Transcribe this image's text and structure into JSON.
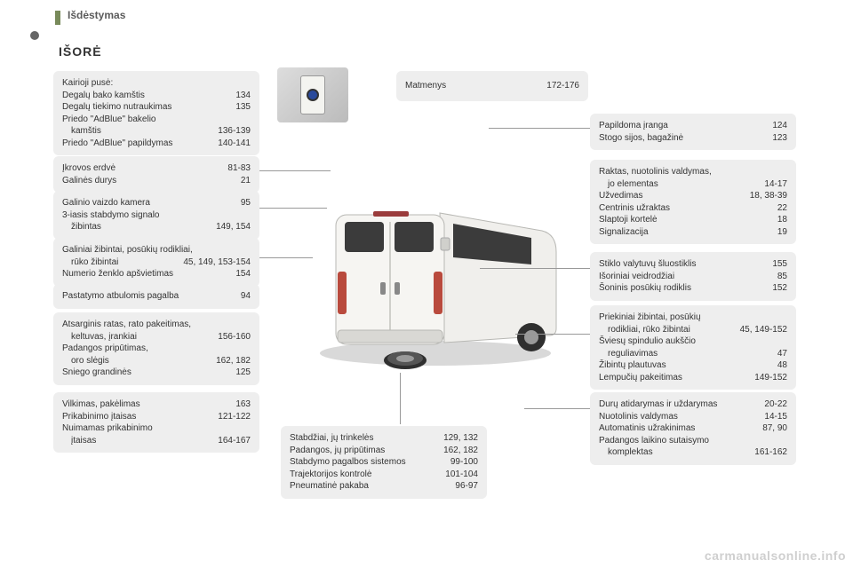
{
  "header": {
    "breadcrumb": "Išdėstymas",
    "section": "IŠORĖ"
  },
  "watermark": "carmanualsonline.info",
  "left": {
    "l1": [
      {
        "label": "Kairioji pusė:",
        "pages": ""
      },
      {
        "label": "Degalų bako kamštis",
        "pages": "134"
      },
      {
        "label": "Degalų tiekimo nutraukimas",
        "pages": "135"
      },
      {
        "label": "Priedo \"AdBlue\" bakelio",
        "pages": ""
      },
      {
        "label": "kamštis",
        "pages": "136-139",
        "indent": true
      },
      {
        "label": "Priedo \"AdBlue\" papildymas",
        "pages": "140-141"
      }
    ],
    "l2": [
      {
        "label": "Įkrovos erdvė",
        "pages": "81-83"
      },
      {
        "label": "Galinės durys",
        "pages": "21"
      }
    ],
    "l3": [
      {
        "label": "Galinio vaizdo kamera",
        "pages": "95"
      },
      {
        "label": "3-iasis stabdymo signalo",
        "pages": ""
      },
      {
        "label": "žibintas",
        "pages": "149, 154",
        "indent": true
      }
    ],
    "l4": [
      {
        "label": "Galiniai žibintai, posūkių rodikliai,",
        "pages": ""
      },
      {
        "label": "rūko žibintai",
        "pages": "45, 149, 153-154",
        "indent": true
      },
      {
        "label": "Numerio ženklo apšvietimas",
        "pages": "154"
      }
    ],
    "l5": [
      {
        "label": "Pastatymo atbulomis pagalba",
        "pages": "94"
      }
    ],
    "l6": [
      {
        "label": "Atsarginis ratas, rato pakeitimas,",
        "pages": ""
      },
      {
        "label": "keltuvas, įrankiai",
        "pages": "156-160",
        "indent": true
      },
      {
        "label": "Padangos pripūtimas,",
        "pages": ""
      },
      {
        "label": "oro slėgis",
        "pages": "162, 182",
        "indent": true
      },
      {
        "label": "Sniego grandinės",
        "pages": "125"
      }
    ],
    "l7": [
      {
        "label": "Vilkimas, pakėlimas",
        "pages": "163"
      },
      {
        "label": "Prikabinimo įtaisas",
        "pages": "121-122"
      },
      {
        "label": "Nuimamas prikabinimo",
        "pages": ""
      },
      {
        "label": "įtaisas",
        "pages": "164-167",
        "indent": true
      }
    ]
  },
  "center": {
    "c1": [
      {
        "label": "Matmenys",
        "pages": "172-176"
      }
    ],
    "c2": [
      {
        "label": "Stabdžiai, jų trinkelės",
        "pages": "129, 132"
      },
      {
        "label": "Padangos, jų pripūtimas",
        "pages": "162, 182"
      },
      {
        "label": "Stabdymo pagalbos sistemos",
        "pages": "99-100"
      },
      {
        "label": "Trajektorijos kontrolė",
        "pages": "101-104"
      },
      {
        "label": "Pneumatinė pakaba",
        "pages": "96-97"
      }
    ]
  },
  "right": {
    "r1": [
      {
        "label": "Papildoma įranga",
        "pages": "124"
      },
      {
        "label": "Stogo sijos, bagažinė",
        "pages": "123"
      }
    ],
    "r2": [
      {
        "label": "Raktas, nuotolinis valdymas,",
        "pages": ""
      },
      {
        "label": "jo elementas",
        "pages": "14-17",
        "indent": true
      },
      {
        "label": "Užvedimas",
        "pages": "18, 38-39"
      },
      {
        "label": "Centrinis užraktas",
        "pages": "22"
      },
      {
        "label": "Slaptoji kortelė",
        "pages": "18"
      },
      {
        "label": "Signalizacija",
        "pages": "19"
      }
    ],
    "r3": [
      {
        "label": "Stiklo valytuvų šluostiklis",
        "pages": "155"
      },
      {
        "label": "Išoriniai veidrodžiai",
        "pages": "85"
      },
      {
        "label": "Šoninis posūkių rodiklis",
        "pages": "152"
      }
    ],
    "r4": [
      {
        "label": "Priekiniai žibintai, posūkių",
        "pages": ""
      },
      {
        "label": "rodikliai, rūko žibintai",
        "pages": "45, 149-152",
        "indent": true
      },
      {
        "label": "Šviesų spindulio aukščio",
        "pages": ""
      },
      {
        "label": "reguliavimas",
        "pages": "47",
        "indent": true
      },
      {
        "label": "Žibintų plautuvas",
        "pages": "48"
      },
      {
        "label": "Lempučių pakeitimas",
        "pages": "149-152"
      }
    ],
    "r5": [
      {
        "label": "Durų atidarymas ir uždarymas",
        "pages": "20-22"
      },
      {
        "label": "Nuotolinis valdymas",
        "pages": "14-15"
      },
      {
        "label": "Automatinis užrakinimas",
        "pages": "87, 90"
      },
      {
        "label": "Padangos laikino sutaisymo",
        "pages": ""
      },
      {
        "label": "komplektas",
        "pages": "161-162",
        "indent": true
      }
    ]
  },
  "style": {
    "box_bg": "#eeeeee",
    "text_color": "#333333",
    "accent": "#788a5a",
    "font_size_pt": 10
  }
}
